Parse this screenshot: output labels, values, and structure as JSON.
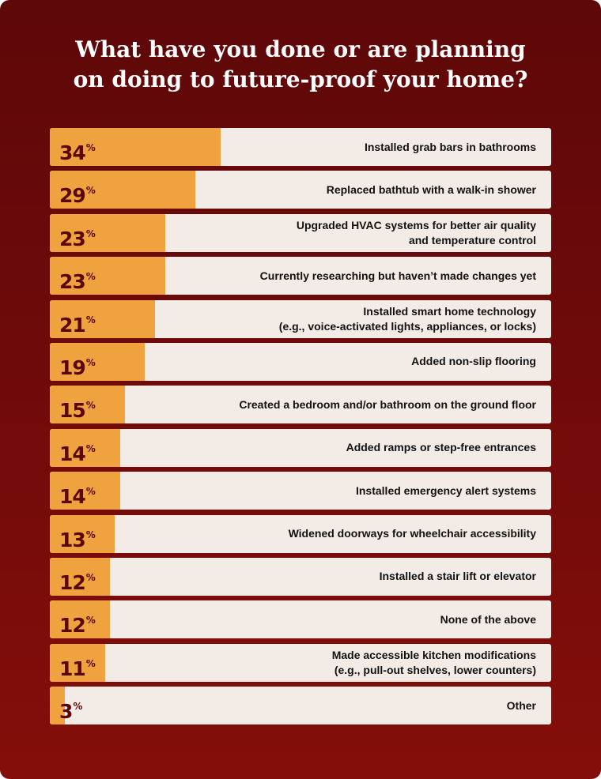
{
  "chart_data": {
    "type": "bar",
    "title": "What have you done or are planning\non doing to future-proof your home?",
    "unit_symbol": "%",
    "xlim": [
      0,
      100
    ],
    "categories": [
      "Installed grab bars in bathrooms",
      "Replaced bathtub with a walk-in shower",
      "Upgraded HVAC systems for better air quality\nand temperature control",
      "Currently researching but haven’t made changes yet",
      "Installed smart home technology\n(e.g., voice-activated lights, appliances, or locks)",
      "Added non-slip flooring",
      "Created a bedroom and/or bathroom on the ground floor",
      "Added ramps or step-free entrances",
      "Installed emergency alert systems",
      "Widened doorways for wheelchair accessibility",
      "Installed a stair lift or elevator",
      "None of the above",
      "Made accessible kitchen modifications\n(e.g., pull-out shelves, lower counters)",
      "Other"
    ],
    "values": [
      34,
      29,
      23,
      23,
      21,
      19,
      15,
      14,
      14,
      13,
      12,
      12,
      11,
      3
    ],
    "colors": {
      "bar": "#f0a23e",
      "track": "#f3ece6",
      "value_text": "#5a0708",
      "background_top": "#5e0809",
      "background_bottom": "#840e0a"
    }
  }
}
